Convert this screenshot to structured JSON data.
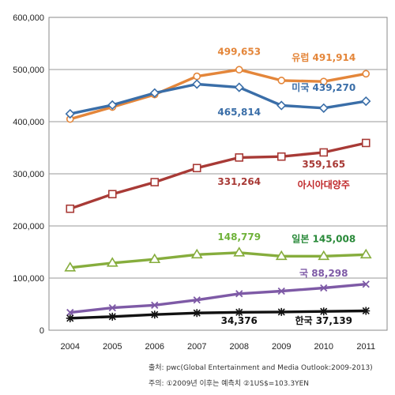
{
  "chart_data": {
    "type": "line",
    "x": [
      "2004",
      "2005",
      "2006",
      "2007",
      "2008",
      "2009",
      "2010",
      "2011"
    ],
    "ylim": [
      0,
      600000
    ],
    "yticks": [
      "0",
      "100,000",
      "200,000",
      "300,000",
      "400,000",
      "500,000",
      "600,000"
    ],
    "grid": true,
    "series": [
      {
        "color": "#E4863A",
        "marker": "circle",
        "values": [
          405000,
          428000,
          452000,
          487000,
          499653,
          479000,
          477000,
          491914
        ]
      },
      {
        "color": "#3A6EA8",
        "marker": "diamond",
        "values": [
          415000,
          432000,
          455000,
          472000,
          465814,
          431000,
          426000,
          439270
        ]
      },
      {
        "color": "#A83A36",
        "marker": "square",
        "values": [
          233000,
          261000,
          284000,
          311000,
          331264,
          333000,
          341000,
          359165
        ]
      },
      {
        "color": "#86AD3D",
        "marker": "triangle",
        "values": [
          120000,
          129000,
          136000,
          145000,
          148779,
          142000,
          142000,
          145008
        ]
      },
      {
        "color": "#7E5AA6",
        "marker": "x",
        "values": [
          34000,
          43000,
          48000,
          58000,
          70000,
          75000,
          81000,
          88298
        ]
      },
      {
        "color": "#111111",
        "marker": "star",
        "values": [
          23000,
          26000,
          30000,
          33000,
          34376,
          35000,
          36000,
          37139
        ]
      }
    ],
    "annotations": [
      {
        "text": "499,653",
        "color": "#E4863A",
        "x": "2008",
        "y": 528000
      },
      {
        "text": "유럽 491,914",
        "color": "#E4863A",
        "x": "2010",
        "y": 517000
      },
      {
        "text": "미국 439,270",
        "color": "#3A6EA8",
        "x": "2010",
        "y": 459000
      },
      {
        "text": "465,814",
        "color": "#3A6EA8",
        "x": "2008",
        "y": 412000
      },
      {
        "text": "359,165",
        "color": "#A83A36",
        "x": "2010",
        "y": 312000
      },
      {
        "text": "331,264",
        "color": "#A83A36",
        "x": "2008",
        "y": 279000
      },
      {
        "text": "아시아대양주",
        "color": "#C0282A",
        "x": "2010",
        "y": 273000
      },
      {
        "text": "148,779",
        "color": "#6FB23A",
        "x": "2008",
        "y": 173000
      },
      {
        "text": "일본 145,008",
        "color": "#2A8A3A",
        "x": "2010",
        "y": 169000
      },
      {
        "text": "국 88,298",
        "color": "#7E5AA6",
        "x": "2010",
        "y": 103000
      },
      {
        "text": "34,376",
        "color": "#111111",
        "x": "2008",
        "y": 12000
      },
      {
        "text": "한국 37,139",
        "color": "#111111",
        "x": "2010",
        "y": 12000
      }
    ]
  },
  "footnotes": {
    "source": "출처: pwc(Global Entertainment and Media Outlook:2009-2013)",
    "note": "주의: ①2009년 이후는 예측치 ②1US$=103.3YEN"
  }
}
